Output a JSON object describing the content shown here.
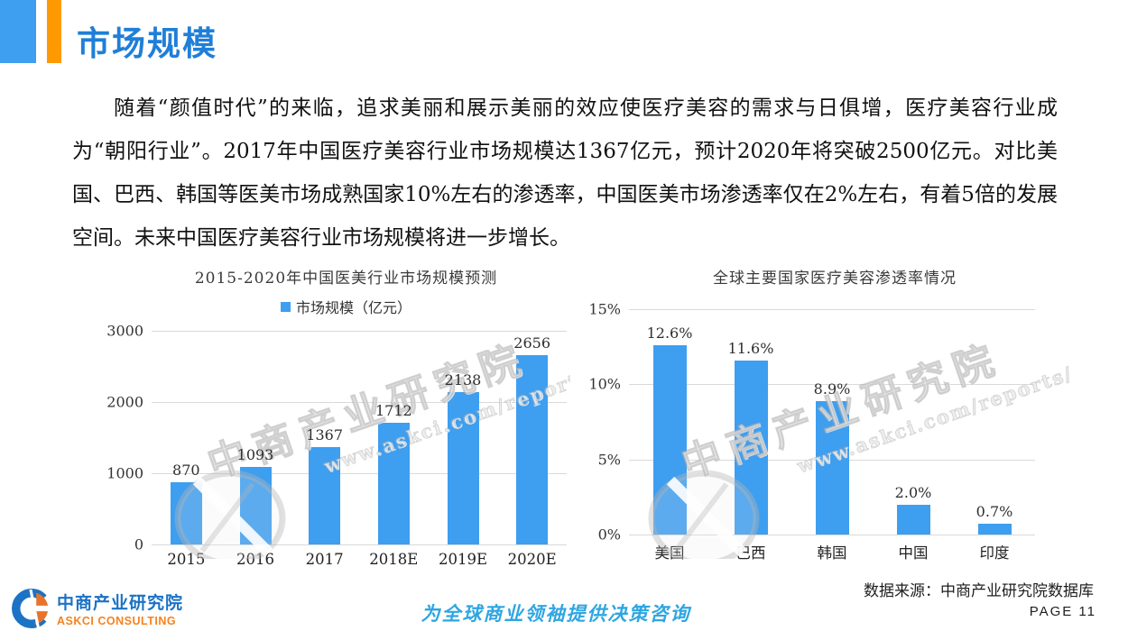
{
  "header": {
    "title": "市场规模"
  },
  "body": {
    "paragraph": "随着“颜值时代”的来临，追求美丽和展示美丽的效应使医疗美容的需求与日俱增，医疗美容行业成为“朝阳行业”。2017年中国医疗美容行业市场规模达1367亿元，预计2020年将突破2500亿元。对比美国、巴西、韩国等医美市场成熟国家10%左右的渗透率，中国医美市场渗透率仅在2%左右，有着5倍的发展空间。未来中国医疗美容行业市场规模将进一步增长。"
  },
  "chart_data": [
    {
      "type": "bar",
      "title": "2015-2020年中国医美行业市场规模预测",
      "legend": "市场规模（亿元）",
      "legend_position": "top",
      "categories": [
        "2015",
        "2016",
        "2017",
        "2018E",
        "2019E",
        "2020E"
      ],
      "values": [
        870,
        1093,
        1367,
        1712,
        2138,
        2656
      ],
      "labels": [
        "870",
        "1093",
        "1367",
        "1712",
        "2138",
        "2656"
      ],
      "xlabel": "",
      "ylabel": "",
      "ymax": 3000,
      "ylim": [
        0,
        3000
      ],
      "grid": true,
      "yticks": [
        {
          "v": 0,
          "label": "0"
        },
        {
          "v": 1000,
          "label": "1000"
        },
        {
          "v": 2000,
          "label": "2000"
        },
        {
          "v": 3000,
          "label": "3000"
        }
      ]
    },
    {
      "type": "bar",
      "title": "全球主要国家医疗美容渗透率情况",
      "legend": "",
      "categories": [
        "美国",
        "巴西",
        "韩国",
        "中国",
        "印度"
      ],
      "values": [
        12.6,
        11.6,
        8.9,
        2.0,
        0.7
      ],
      "labels": [
        "12.6%",
        "11.6%",
        "8.9%",
        "2.0%",
        "0.7%"
      ],
      "xlabel": "",
      "ylabel": "",
      "ymax": 15,
      "ylim": [
        0,
        15
      ],
      "grid": true,
      "yticks": [
        {
          "v": 0,
          "label": "0%"
        },
        {
          "v": 5,
          "label": "5%"
        },
        {
          "v": 10,
          "label": "10%"
        },
        {
          "v": 15,
          "label": "15%"
        }
      ]
    }
  ],
  "watermark": {
    "line1": "中商产业研究院",
    "line2": "www.askci.com/reports/"
  },
  "footer": {
    "logo_cn": "中商产业研究院",
    "logo_en": "ASKCI CONSULTING",
    "slogan": "为全球商业领袖提供决策咨询",
    "data_source": "数据来源：中商产业研究院数据库",
    "page_label": "PAGE 11"
  },
  "colors": {
    "accent_blue": "#3E9EF0",
    "accent_orange": "#FF9900",
    "title_blue": "#1F7FD8",
    "slogan_blue": "#2FA6E1",
    "grid": "#D9D9D9"
  }
}
